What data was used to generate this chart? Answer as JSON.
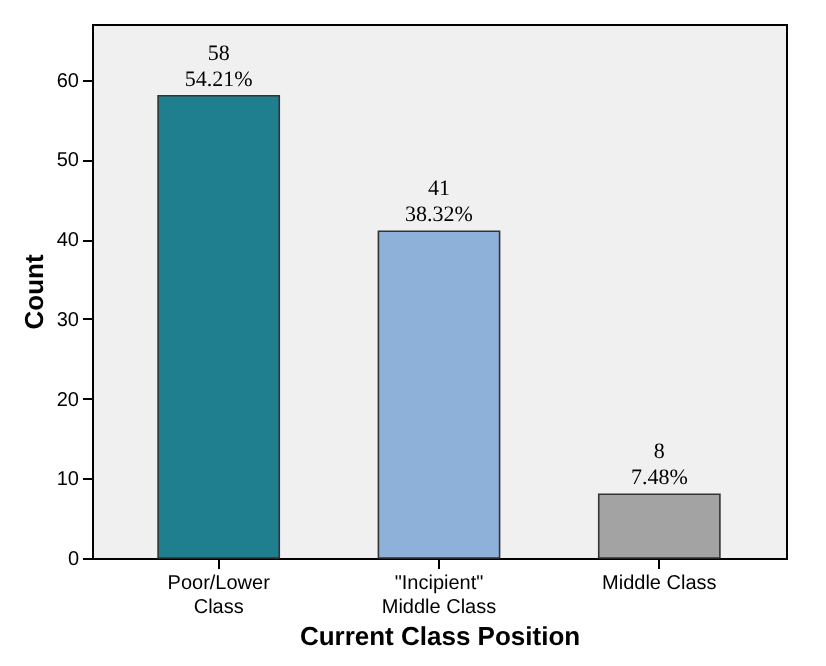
{
  "chart_data": {
    "type": "bar",
    "xlabel": "Current Class Position",
    "ylabel": "Count",
    "categories": [
      "Poor/Lower Class",
      "\"Incipient\" Middle Class",
      "Middle Class"
    ],
    "values": [
      58,
      41,
      8
    ],
    "colors": [
      "#1f7f8f",
      "#8eb1d9",
      "#a3a3a3"
    ],
    "value_labels": [
      "58\n54.21%",
      "41\n38.32%",
      "8\n7.48%"
    ],
    "ylim": [
      0,
      67
    ],
    "yticks": [
      0,
      10,
      20,
      30,
      40,
      50,
      60
    ],
    "grid": false
  }
}
